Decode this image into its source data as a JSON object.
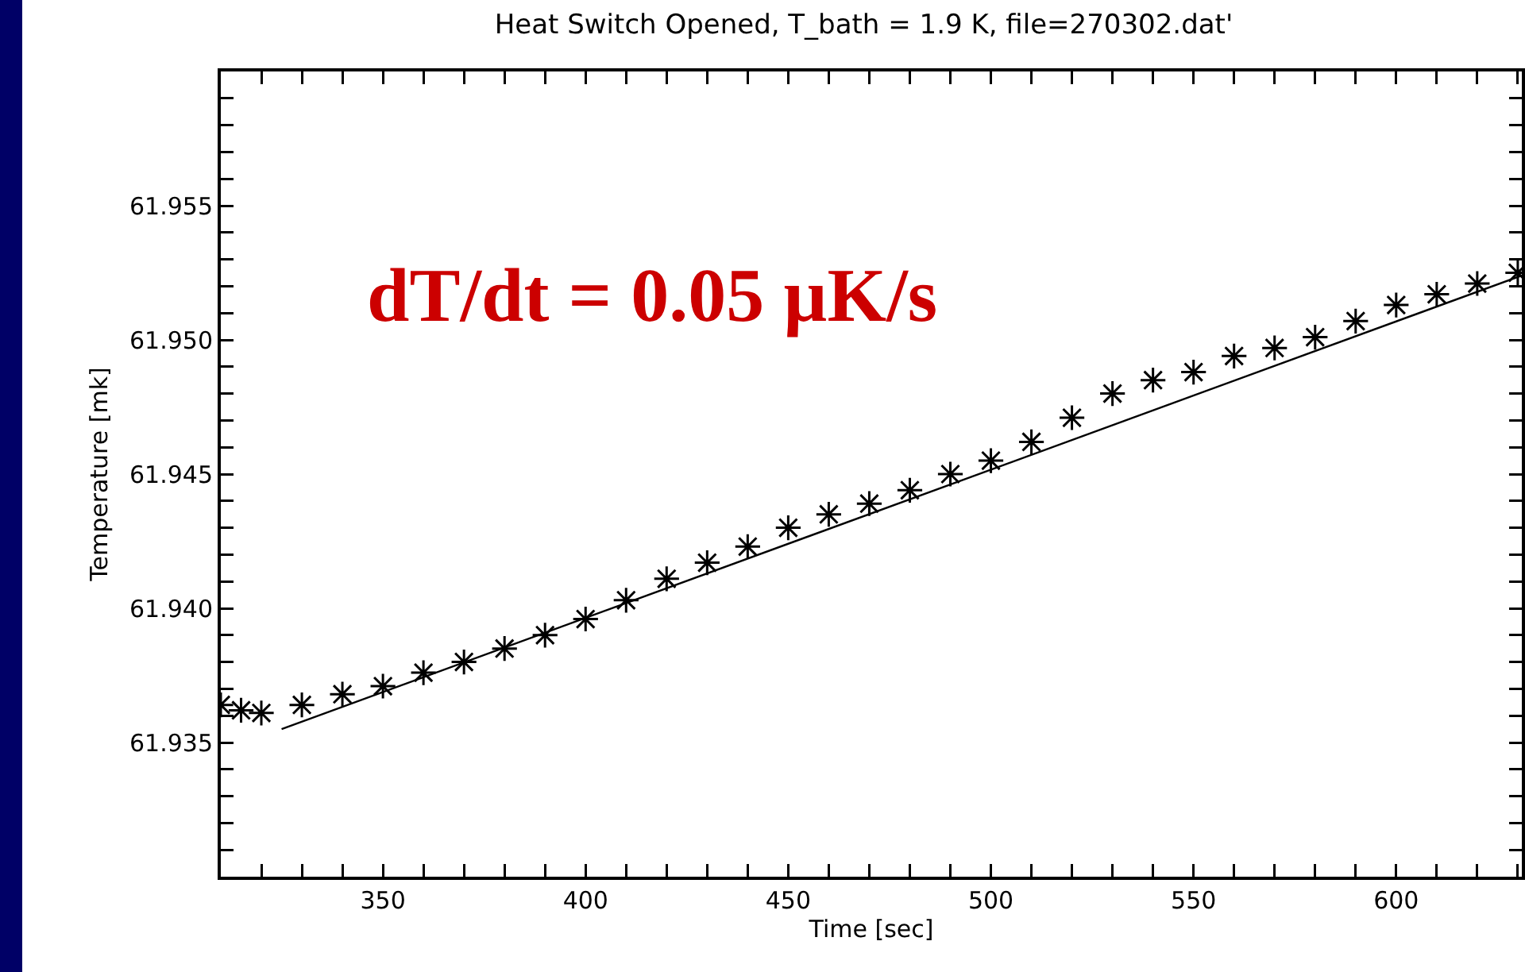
{
  "chart_data": {
    "type": "scatter",
    "title": "Heat Switch Opened, T_bath = 1.9 K, file=270302.dat'",
    "xlabel": "Time [sec]",
    "ylabel": "Temperature [mk]",
    "annotations": [
      "dT/dt = 0.05 µK/s"
    ],
    "x": [
      310,
      315,
      320,
      330,
      340,
      350,
      360,
      370,
      380,
      390,
      400,
      410,
      420,
      430,
      440,
      450,
      460,
      470,
      480,
      490,
      500,
      510,
      520,
      530,
      540,
      550,
      560,
      570,
      580,
      590,
      600,
      610,
      620,
      630
    ],
    "series": [
      {
        "color": "#000000",
        "marker": "cross",
        "values": [
          61.9364,
          61.9362,
          61.9361,
          61.9364,
          61.9368,
          61.9371,
          61.9376,
          61.938,
          61.9385,
          61.939,
          61.9396,
          61.9403,
          61.9411,
          61.9417,
          61.9423,
          61.943,
          61.9435,
          61.9439,
          61.9444,
          61.945,
          61.9455,
          61.9462,
          61.9471,
          61.948,
          61.9485,
          61.9488,
          61.9494,
          61.9497,
          61.9501,
          61.9507,
          61.9513,
          61.9517,
          61.9521,
          61.9525
        ]
      },
      {
        "type": "line",
        "color": "#000000",
        "line_style": "solid",
        "marker": "none",
        "x": [
          325,
          631
        ],
        "values": [
          61.9355,
          61.9524
        ]
      }
    ],
    "xlim": [
      310,
      631
    ],
    "ylim": [
      61.93,
      61.96
    ],
    "xticks": [
      {
        "value": 320,
        "label": null
      },
      {
        "value": 330,
        "label": null
      },
      {
        "value": 340,
        "label": null
      },
      350,
      {
        "value": 360,
        "label": null
      },
      {
        "value": 370,
        "label": null
      },
      {
        "value": 380,
        "label": null
      },
      {
        "value": 390,
        "label": null
      },
      400,
      {
        "value": 410,
        "label": null
      },
      {
        "value": 420,
        "label": null
      },
      {
        "value": 430,
        "label": null
      },
      {
        "value": 440,
        "label": null
      },
      450,
      {
        "value": 460,
        "label": null
      },
      {
        "value": 470,
        "label": null
      },
      {
        "value": 480,
        "label": null
      },
      {
        "value": 490,
        "label": null
      },
      500,
      {
        "value": 510,
        "label": null
      },
      {
        "value": 520,
        "label": null
      },
      {
        "value": 530,
        "label": null
      },
      {
        "value": 540,
        "label": null
      },
      550,
      {
        "value": 560,
        "label": null
      },
      {
        "value": 570,
        "label": null
      },
      {
        "value": 580,
        "label": null
      },
      {
        "value": 590,
        "label": null
      },
      600,
      {
        "value": 610,
        "label": null
      },
      {
        "value": 620,
        "label": null
      },
      {
        "value": 630,
        "label": null
      }
    ],
    "yticks": [
      {
        "value": 61.931,
        "label": null
      },
      {
        "value": 61.932,
        "label": null
      },
      {
        "value": 61.933,
        "label": null
      },
      {
        "value": 61.934,
        "label": null
      },
      61.935,
      {
        "value": 61.936,
        "label": null
      },
      {
        "value": 61.937,
        "label": null
      },
      {
        "value": 61.938,
        "label": null
      },
      {
        "value": 61.939,
        "label": null
      },
      {
        "value": 61.94,
        "label": "61.940"
      },
      {
        "value": 61.941,
        "label": null
      },
      {
        "value": 61.942,
        "label": null
      },
      {
        "value": 61.943,
        "label": null
      },
      {
        "value": 61.944,
        "label": null
      },
      61.945,
      {
        "value": 61.946,
        "label": null
      },
      {
        "value": 61.947,
        "label": null
      },
      {
        "value": 61.948,
        "label": null
      },
      {
        "value": 61.949,
        "label": null
      },
      {
        "value": 61.95,
        "label": "61.950"
      },
      {
        "value": 61.951,
        "label": null
      },
      {
        "value": 61.952,
        "label": null
      },
      {
        "value": 61.953,
        "label": null
      },
      {
        "value": 61.954,
        "label": null
      },
      61.955,
      {
        "value": 61.956,
        "label": null
      },
      {
        "value": 61.957,
        "label": null
      },
      {
        "value": 61.958,
        "label": null
      },
      {
        "value": 61.959,
        "label": null
      }
    ],
    "grid": false
  }
}
